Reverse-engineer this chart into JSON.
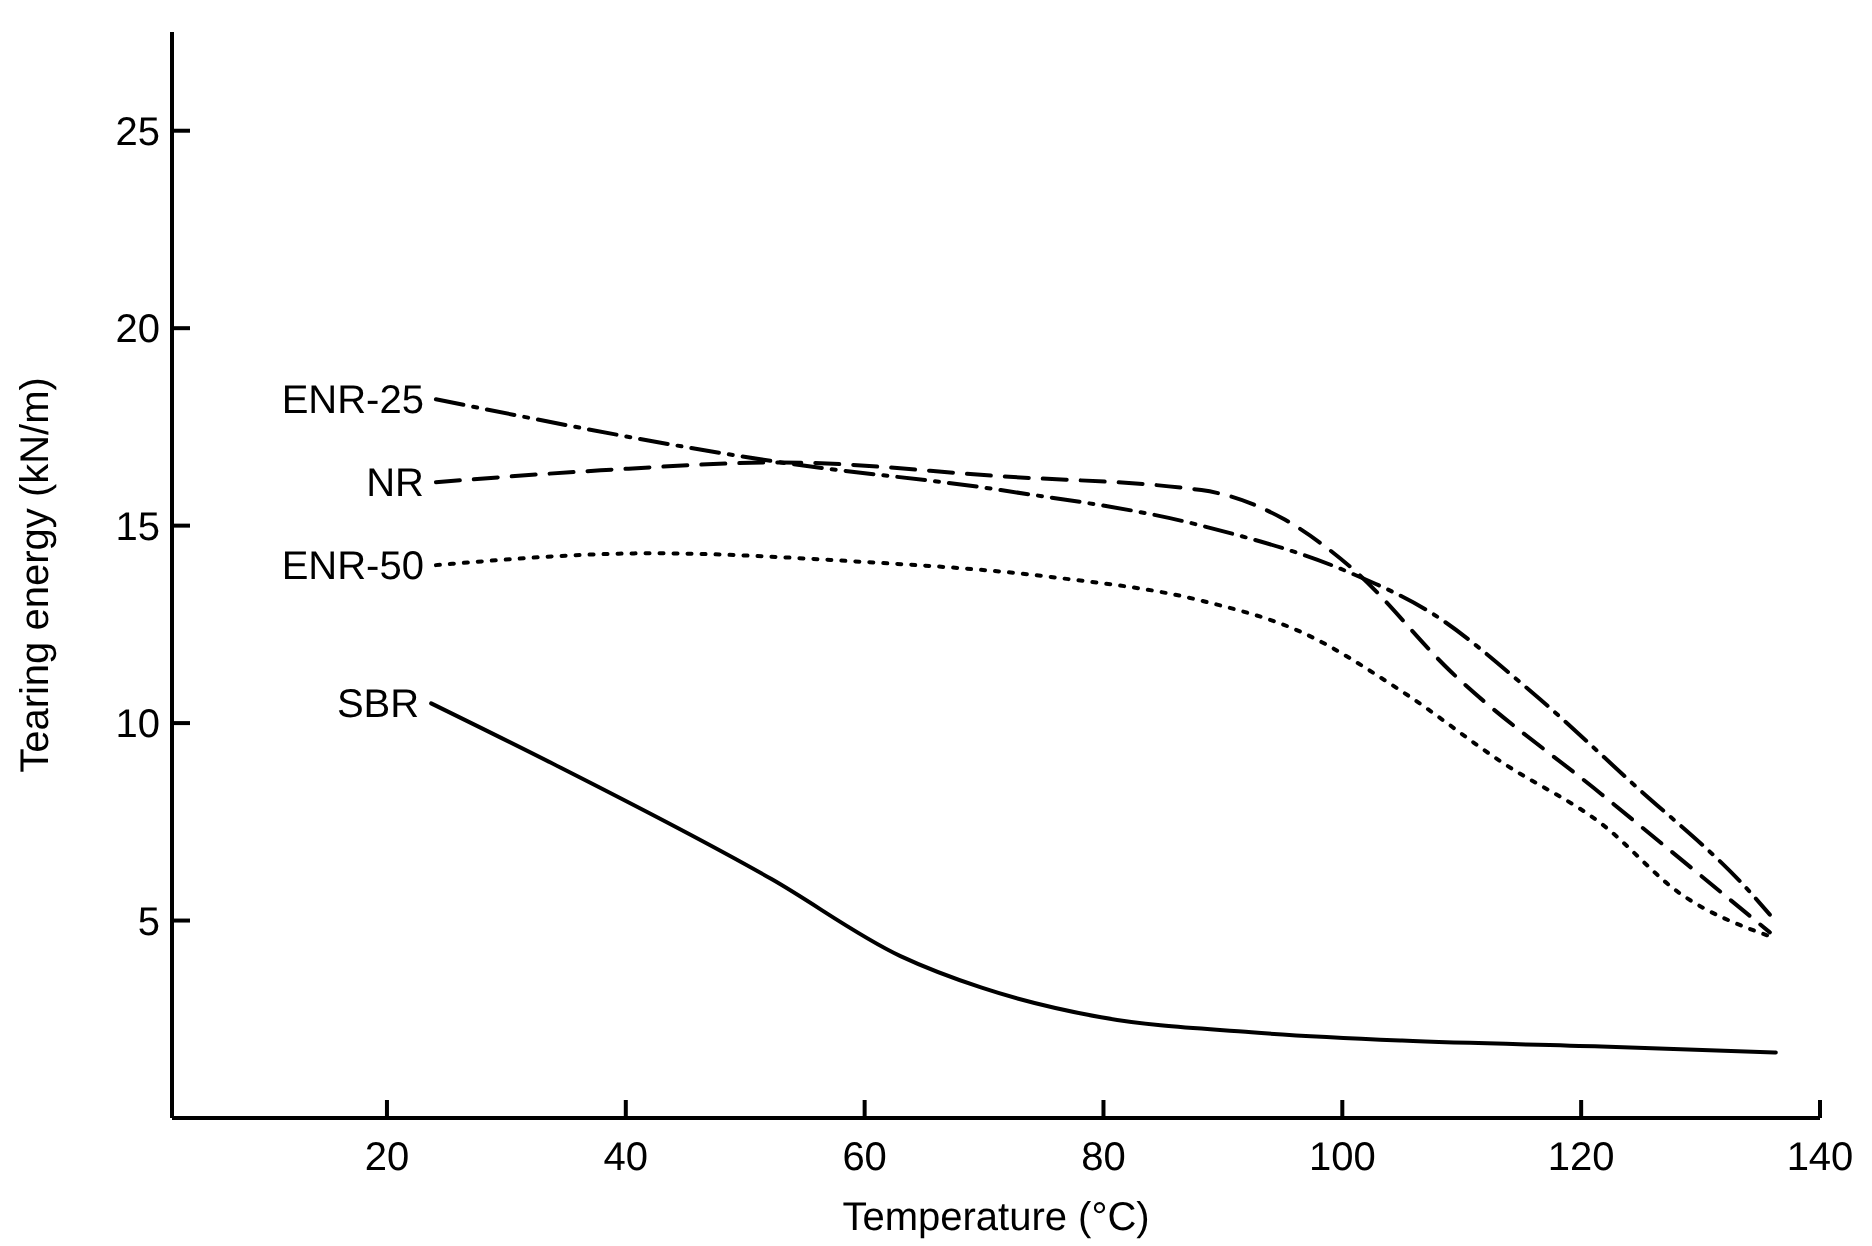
{
  "chart_data": {
    "type": "line",
    "xlabel": "Temperature (°C)",
    "ylabel": "Tearing energy (kN/m)",
    "xlim": [
      2,
      140
    ],
    "ylim": [
      0,
      27.5
    ],
    "xticks": [
      20,
      40,
      60,
      80,
      100,
      120,
      140
    ],
    "yticks": [
      5,
      10,
      15,
      20,
      25
    ],
    "grid": false,
    "marker": "none",
    "series": [
      {
        "name": "ENR-25",
        "color": "#000000",
        "line_style": "dashdot",
        "x": [
          24.1,
          53,
          71.4,
          88.2,
          100.7,
          107.4,
          115.8,
          124.2,
          134.2,
          135.8
        ],
        "values": [
          18.2,
          16.6,
          15.9,
          15.0,
          13.8,
          12.8,
          10.8,
          8.5,
          5.7,
          5.15
        ]
      },
      {
        "name": "NR",
        "color": "#000000",
        "line_style": "dashed",
        "x": [
          24.1,
          37.9,
          53,
          71.4,
          88.2,
          94.9,
          100.7,
          109.1,
          121.7,
          135.8
        ],
        "values": [
          16.1,
          16.4,
          16.6,
          16.25,
          15.9,
          15.2,
          13.95,
          11.3,
          8.2,
          4.7
        ]
      },
      {
        "name": "ENR-50",
        "color": "#000000",
        "line_style": "dotted",
        "x": [
          24.1,
          42.1,
          58.9,
          75.6,
          88.2,
          96.6,
          105,
          113.4,
          121.7,
          128.4,
          135.8
        ],
        "values": [
          14.0,
          14.3,
          14.1,
          13.7,
          13.1,
          12.3,
          10.8,
          9.0,
          7.45,
          5.66,
          4.6
        ]
      },
      {
        "name": "SBR",
        "color": "#000000",
        "line_style": "solid",
        "x": [
          23.7,
          33.7,
          52.2,
          63,
          69.8,
          79.8,
          92.4,
          105,
          121.7,
          136.3
        ],
        "values": [
          10.5,
          9.0,
          6.05,
          4.1,
          3.3,
          2.55,
          2.17,
          1.96,
          1.81,
          1.66
        ]
      }
    ]
  }
}
